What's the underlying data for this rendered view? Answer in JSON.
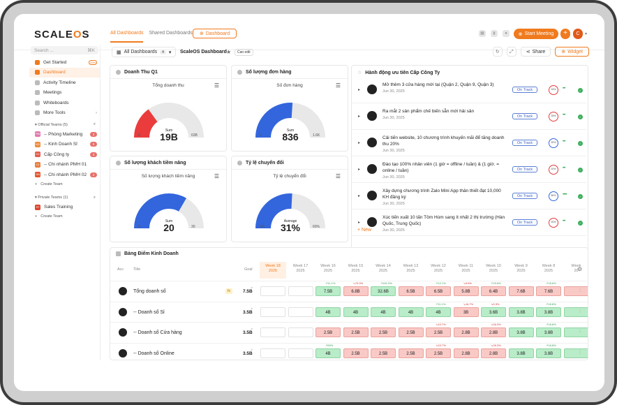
{
  "app": {
    "logo_a": "SCALE",
    "logo_b": "O",
    "logo_c": "S"
  },
  "topnav": {
    "tabs": [
      "All Dashboards",
      "Shared Dashboards"
    ],
    "dashboard_btn": "Dashboard",
    "start_meeting": "Start Meeting",
    "avatar": "C"
  },
  "sidebar": {
    "search_placeholder": "Search ...",
    "search_shortcut": "⌘K",
    "items": [
      {
        "label": "Get Started",
        "badge": "20%"
      },
      {
        "label": "Dashboard"
      },
      {
        "label": "Activity Timeline"
      },
      {
        "label": "Meetings"
      },
      {
        "label": "Whiteboards"
      },
      {
        "label": "More Tools"
      }
    ],
    "official_teams_label": "Official Teams (5)",
    "official_teams": [
      {
        "label": "-- Phòng Marketing",
        "count": "3",
        "color": "#e07ab0",
        "initials": "PM"
      },
      {
        "label": "-- Kinh Doanh Sỉ",
        "count": "5",
        "color": "#ee8c3a",
        "initials": "KD"
      },
      {
        "label": "Cấp Công ty",
        "count": "3",
        "color": "#e35b4b",
        "initials": "CC"
      },
      {
        "label": "-- Chi nhánh PMH 01",
        "count": "",
        "color": "#e87c3b",
        "initials": "C1"
      },
      {
        "label": "-- Chi nhánh PMH 02",
        "count": "2",
        "color": "#e1552f",
        "initials": "ON"
      }
    ],
    "create_team": "Create Team",
    "private_teams_label": "Private Teams (1)",
    "private_teams": [
      {
        "label": "Sales Training",
        "color": "#d9452e",
        "initials": "ST"
      }
    ],
    "create_team2": "Create Team"
  },
  "dash": {
    "select_label": "All Dashboards",
    "select_count": "4",
    "name": "ScaleOS Dashboard",
    "can_edit": "Can edit",
    "share": "Share",
    "widget": "Widget"
  },
  "gauges": [
    {
      "title": "Doanh Thu Q1",
      "subtitle": "Tổng doanh thu",
      "agg": "Sum",
      "value": "19B",
      "min": "0",
      "max": "63B",
      "fraction": 0.3,
      "color": "#ea3c3c"
    },
    {
      "title": "Số lượng đơn hàng",
      "subtitle": "Số đơn hàng",
      "agg": "Sum",
      "value": "836",
      "min": "0",
      "max": "1.6K",
      "fraction": 0.52,
      "color": "#3366dd"
    },
    {
      "title": "Số lượng khách tiềm năng",
      "subtitle": "Số lượng khách tiềm năng",
      "agg": "Sum",
      "value": "20",
      "min": "0",
      "max": "30",
      "fraction": 0.667,
      "color": "#3366dd"
    },
    {
      "title": "Tỷ lệ chuyển đổi",
      "subtitle": "Tỷ lệ chuyển đổi",
      "agg": "Average",
      "value": "31%",
      "min": "0%",
      "max": "60%",
      "fraction": 0.517,
      "color": "#3366dd"
    }
  ],
  "actions": {
    "title": "Hành động ưu tiên Cấp Công Ty",
    "rows": [
      {
        "text": "Mở thêm 3 cửa hàng mới tại (Quận 2, Quận 9, Quận 3)",
        "date": "Jun 30, 2025",
        "status": "On Track",
        "pct": "24%",
        "pct_color": "red",
        "dots": "•••"
      },
      {
        "text": "Ra mắt 2 sản phẩm chế biến sẵn mới hải sản",
        "date": "Jun 30, 2025",
        "status": "On Track",
        "pct": "33%",
        "pct_color": "red",
        "dots": "•••"
      },
      {
        "text": "Cải tiến website, 10 chương trình khuyến mãi để tăng doanh thu 20%",
        "date": "Jun 30, 2025",
        "status": "On Track",
        "pct": "20%",
        "pct_color": "blue",
        "dots": "•••"
      },
      {
        "text": "Đào tạo 100% nhân viên (1 giờ = offline / tuần) & (1 giờ. = online / tuần)",
        "date": "Jun 30, 2025",
        "status": "On Track",
        "pct": "10%",
        "pct_color": "red",
        "dots": "•••"
      },
      {
        "text": "Xây dựng chương trình Zalo Mini App thân thiết đạt 10,000 KH đăng ký",
        "date": "Jun 30, 2025",
        "status": "On Track",
        "pct": "50%",
        "pct_color": "blue",
        "dots": "•••••"
      },
      {
        "text": "Xúc tiến xuất 10 tấn Tôm Hùm sang ít nhất 2 thị trường (Hàn Quốc, Trung Quốc)",
        "date": "Jun 30, 2025",
        "status": "On Track",
        "pct": "20%",
        "pct_color": "red",
        "dots": "•••"
      }
    ],
    "new": "+ New"
  },
  "scorecard": {
    "title": "Bảng Điểm Kinh Doanh",
    "col_acc": "Acc",
    "col_title": "Title",
    "col_goal": "Goal",
    "weeks": [
      {
        "w": "Week 18",
        "y": "2025"
      },
      {
        "w": "Week 17",
        "y": "2025"
      },
      {
        "w": "Week 16",
        "y": "2025"
      },
      {
        "w": "Week 15",
        "y": "2025"
      },
      {
        "w": "Week 14",
        "y": "2025"
      },
      {
        "w": "Week 13",
        "y": "2025"
      },
      {
        "w": "Week 12",
        "y": "2025"
      },
      {
        "w": "Week 11",
        "y": "2025"
      },
      {
        "w": "Week 10",
        "y": "2025"
      },
      {
        "w": "Week 9",
        "y": "2025"
      },
      {
        "w": "Week 8",
        "y": "2025"
      },
      {
        "w": "Week",
        "y": "20"
      }
    ],
    "rows": [
      {
        "name": "Tổng doanh số",
        "fx": "fx",
        "goal_op": "≥",
        "goal": "7.5B",
        "cells": [
          [
            "",
            "e",
            ""
          ],
          [
            "",
            "e",
            ""
          ],
          [
            "7.5B",
            "g",
            "↗11.1%"
          ],
          [
            "6.8B",
            "r",
            "↘79.3%"
          ],
          [
            "32.6B",
            "g",
            "↗401.5%"
          ],
          [
            "6.5B",
            "r",
            ""
          ],
          [
            "6.5B",
            "r",
            "↗12.1%"
          ],
          [
            "5.8B",
            "r",
            "↘9.6%"
          ],
          [
            "6.4B",
            "r",
            "↗15.8%"
          ],
          [
            "7.6B",
            "r",
            ""
          ],
          [
            "7.6B",
            "r",
            "↗18.6%"
          ],
          [
            "",
            "r",
            ""
          ]
        ]
      },
      {
        "name": "-- Doanh số Sỉ",
        "fx": "",
        "goal_op": "≥",
        "goal": "3.5B",
        "cells": [
          [
            "",
            "e",
            ""
          ],
          [
            "",
            "e",
            ""
          ],
          [
            "4B",
            "g",
            ""
          ],
          [
            "4B",
            "g",
            ""
          ],
          [
            "4B",
            "g",
            ""
          ],
          [
            "4B",
            "g",
            ""
          ],
          [
            "4B",
            "g",
            "↗11.1%"
          ],
          [
            "3B",
            "r",
            "↘16.7%"
          ],
          [
            "3.6B",
            "g",
            "↘5.3%"
          ],
          [
            "3.8B",
            "g",
            ""
          ],
          [
            "3.8B",
            "g",
            "↗18.8%"
          ],
          [
            "",
            "g",
            ""
          ]
        ]
      },
      {
        "name": "-- Doanh số Cửa hàng",
        "fx": "",
        "goal_op": "≥",
        "goal": "3.5B",
        "cells": [
          [
            "",
            "e",
            ""
          ],
          [
            "",
            "e",
            ""
          ],
          [
            "2.5B",
            "r",
            ""
          ],
          [
            "2.5B",
            "r",
            ""
          ],
          [
            "2.5B",
            "r",
            ""
          ],
          [
            "2.5B",
            "r",
            ""
          ],
          [
            "2.5B",
            "r",
            "↘10.7%"
          ],
          [
            "2.8B",
            "r",
            ""
          ],
          [
            "2.8B",
            "r",
            "↘26.3%"
          ],
          [
            "3.8B",
            "g",
            ""
          ],
          [
            "3.8B",
            "g",
            "↗18.8%"
          ],
          [
            "",
            "g",
            ""
          ]
        ]
      },
      {
        "name": "-- Doanh số Online",
        "fx": "",
        "goal_op": "≥",
        "goal": "3.5B",
        "cells": [
          [
            "",
            "e",
            ""
          ],
          [
            "",
            "e",
            ""
          ],
          [
            "4B",
            "g",
            "↗60%"
          ],
          [
            "2.5B",
            "r",
            ""
          ],
          [
            "2.5B",
            "r",
            ""
          ],
          [
            "2.5B",
            "r",
            ""
          ],
          [
            "2.5B",
            "r",
            "↘10.7%"
          ],
          [
            "2.8B",
            "r",
            ""
          ],
          [
            "2.8B",
            "r",
            "↘26.3%"
          ],
          [
            "3.8B",
            "g",
            ""
          ],
          [
            "3.8B",
            "g",
            "↗18.8%"
          ],
          [
            "",
            "g",
            ""
          ]
        ]
      }
    ]
  }
}
